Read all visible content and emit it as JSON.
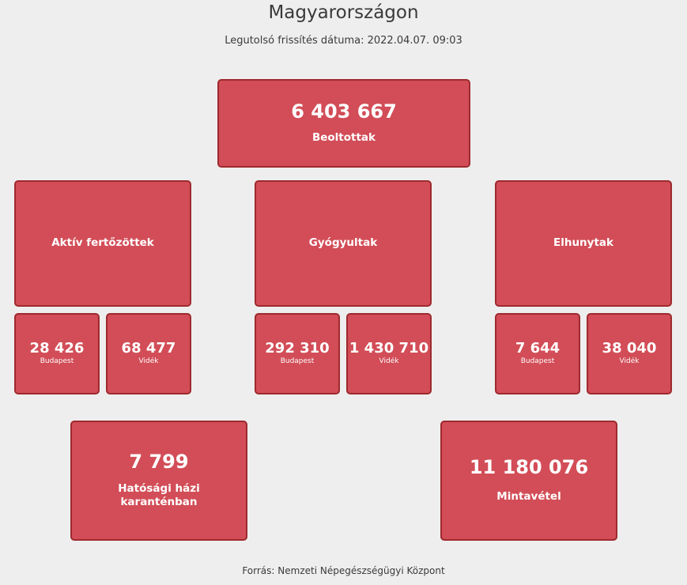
{
  "header": {
    "title": "Magyarországon",
    "updated": "Legutolsó frissítés dátuma: 2022.04.07. 09:03"
  },
  "vaccinated": {
    "value": "6 403 667",
    "label": "Beoltottak"
  },
  "active": {
    "label": "Aktív fertőzöttek",
    "budapest": {
      "value": "28 426",
      "label": "Budapest"
    },
    "videk": {
      "value": "68 477",
      "label": "Vidék"
    }
  },
  "recovered": {
    "label": "Gyógyultak",
    "budapest": {
      "value": "292 310",
      "label": "Budapest"
    },
    "videk": {
      "value": "1 430 710",
      "label": "Vidék"
    }
  },
  "deceased": {
    "label": "Elhunytak",
    "budapest": {
      "value": "7 644",
      "label": "Budapest"
    },
    "videk": {
      "value": "38 040",
      "label": "Vidék"
    }
  },
  "quarantine": {
    "value": "7 799",
    "label_line1": "Hatósági házi",
    "label_line2": "karanténban"
  },
  "samples": {
    "value": "11 180 076",
    "label": "Mintavétel"
  },
  "footer": {
    "source": "Forrás: Nemzeti Népegészségügyi Központ"
  },
  "colors": {
    "card_bg": "#d24d57",
    "card_border": "#9e2a2f",
    "page_bg": "#eeeeee"
  }
}
